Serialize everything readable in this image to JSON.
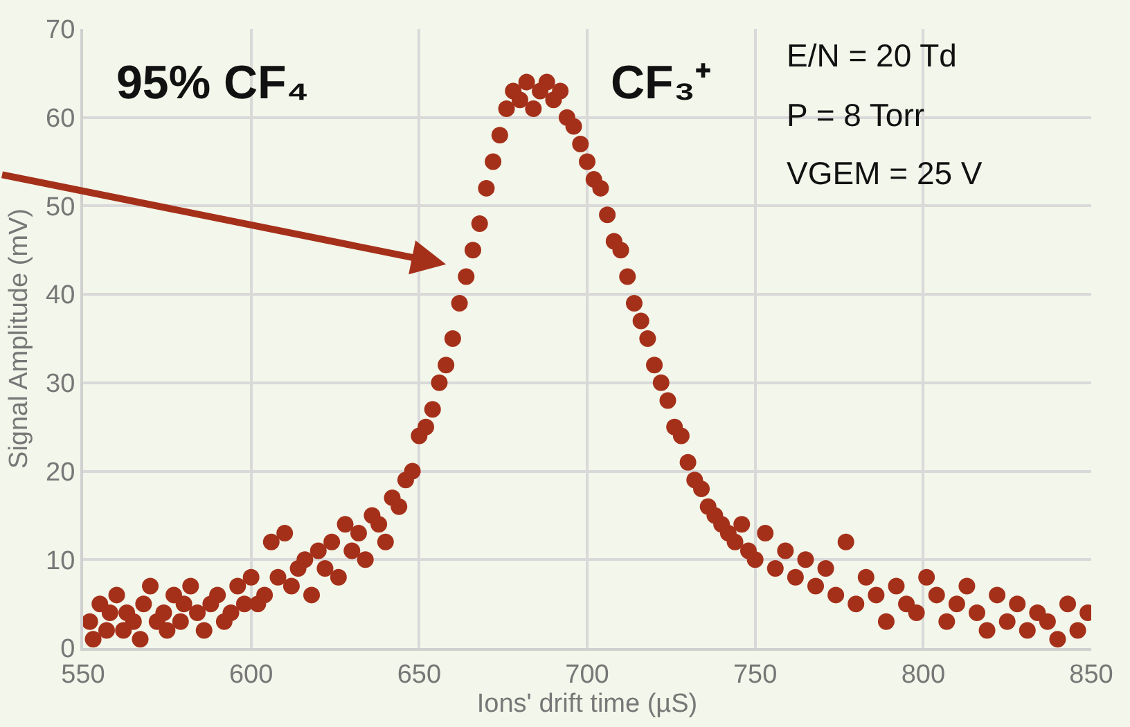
{
  "chart_data": {
    "type": "scatter",
    "xlabel": "Ions' drift time (µS)",
    "ylabel": "Signal Amplitude (mV)",
    "xlim": [
      550,
      850
    ],
    "xticks": [
      550,
      600,
      650,
      700,
      750,
      800,
      850
    ],
    "ylim": [
      0,
      70
    ],
    "yticks": [
      0,
      10,
      20,
      30,
      40,
      50,
      60,
      70
    ],
    "grid": true,
    "marker": "circle",
    "annotations": [
      "95% CF₄",
      "CF₃⁺",
      "E/N = 20 Td",
      "P = 8 Torr",
      "VGEM = 25 V"
    ],
    "series": [
      {
        "color": "#a5301a",
        "x": [
          552,
          553,
          555,
          557,
          558,
          560,
          562,
          563,
          565,
          567,
          568,
          570,
          572,
          574,
          575,
          577,
          579,
          580,
          582,
          584,
          586,
          588,
          590,
          592,
          594,
          596,
          598,
          600,
          602,
          604,
          606,
          608,
          610,
          612,
          614,
          616,
          618,
          620,
          622,
          624,
          626,
          628,
          630,
          632,
          634,
          636,
          638,
          640,
          642,
          644,
          646,
          648,
          650,
          652,
          654,
          656,
          658,
          660,
          662,
          664,
          666,
          668,
          670,
          672,
          674,
          676,
          678,
          680,
          682,
          684,
          686,
          688,
          690,
          692,
          694,
          696,
          698,
          700,
          702,
          704,
          706,
          708,
          710,
          712,
          714,
          716,
          718,
          720,
          722,
          724,
          726,
          728,
          730,
          732,
          734,
          736,
          738,
          740,
          742,
          744,
          746,
          748,
          750,
          753,
          756,
          759,
          762,
          765,
          768,
          771,
          774,
          777,
          780,
          783,
          786,
          789,
          792,
          795,
          798,
          801,
          804,
          807,
          810,
          813,
          816,
          819,
          822,
          825,
          828,
          831,
          834,
          837,
          840,
          843,
          846,
          849
        ],
        "values": [
          3,
          1,
          5,
          2,
          4,
          6,
          2,
          4,
          3,
          1,
          5,
          7,
          3,
          4,
          2,
          6,
          3,
          5,
          7,
          4,
          2,
          5,
          6,
          3,
          4,
          7,
          5,
          8,
          5,
          6,
          12,
          8,
          13,
          7,
          9,
          10,
          6,
          11,
          9,
          12,
          8,
          14,
          11,
          13,
          10,
          15,
          14,
          12,
          17,
          16,
          19,
          20,
          24,
          25,
          27,
          30,
          32,
          35,
          39,
          42,
          45,
          48,
          52,
          55,
          58,
          61,
          63,
          62,
          64,
          61,
          63,
          64,
          62,
          63,
          60,
          59,
          57,
          55,
          53,
          52,
          49,
          46,
          45,
          42,
          39,
          37,
          35,
          32,
          30,
          28,
          25,
          24,
          21,
          19,
          18,
          16,
          15,
          14,
          13,
          12,
          14,
          11,
          10,
          13,
          9,
          11,
          8,
          10,
          7,
          9,
          6,
          12,
          5,
          8,
          6,
          3,
          7,
          5,
          4,
          8,
          6,
          3,
          5,
          7,
          4,
          2,
          6,
          3,
          5,
          2,
          4,
          3,
          1,
          5,
          2,
          4
        ]
      }
    ]
  }
}
